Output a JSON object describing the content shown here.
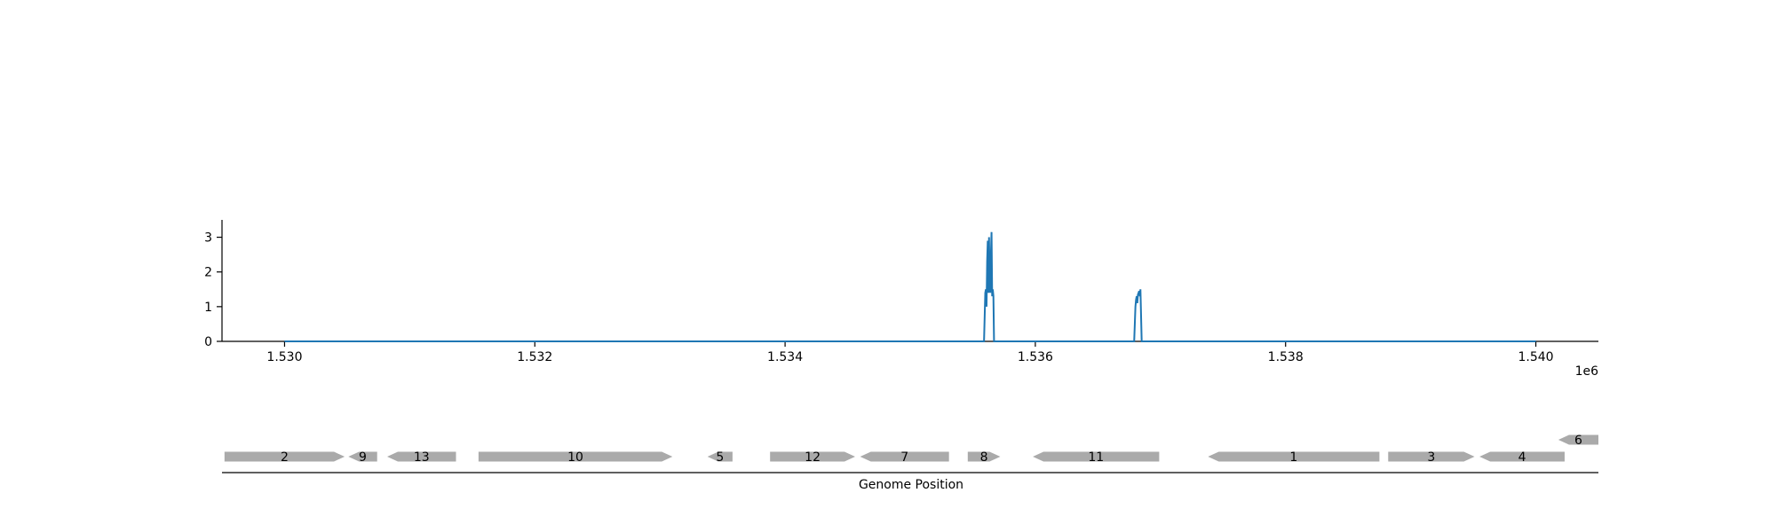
{
  "chart_data": {
    "type": "line",
    "title": "",
    "ylabel": "",
    "xlabel": "Genome Position",
    "x_offset_label": "1e6",
    "xlim": [
      1529500,
      1540500
    ],
    "ylim": [
      0,
      3.5
    ],
    "x_ticks": [
      {
        "value": 1530000,
        "label": "1.530"
      },
      {
        "value": 1532000,
        "label": "1.532"
      },
      {
        "value": 1534000,
        "label": "1.534"
      },
      {
        "value": 1536000,
        "label": "1.536"
      },
      {
        "value": 1538000,
        "label": "1.538"
      },
      {
        "value": 1540000,
        "label": "1.540"
      }
    ],
    "y_ticks": [
      {
        "value": 0,
        "label": "0"
      },
      {
        "value": 1,
        "label": "1"
      },
      {
        "value": 2,
        "label": "2"
      },
      {
        "value": 3,
        "label": "3"
      }
    ],
    "series": [
      {
        "color": "#1f77b4",
        "x": [
          1530000,
          1535590,
          1535600,
          1535605,
          1535610,
          1535615,
          1535620,
          1535625,
          1535630,
          1535635,
          1535640,
          1535645,
          1535650,
          1535655,
          1535660,
          1535665,
          1535670,
          1535680,
          1536790,
          1536800,
          1536805,
          1536810,
          1536815,
          1536820,
          1536825,
          1536830,
          1536835,
          1536840,
          1536850,
          1540000
        ],
        "y": [
          0,
          0,
          1.4,
          1.5,
          1.0,
          2.3,
          2.9,
          1.4,
          3.0,
          1.6,
          1.4,
          2.5,
          3.15,
          1.3,
          1.5,
          1.3,
          0,
          0,
          0,
          1.0,
          1.2,
          1.3,
          1.1,
          1.35,
          1.4,
          1.45,
          1.3,
          1.5,
          0,
          0
        ]
      }
    ],
    "genes": [
      {
        "label": "2",
        "start": 1529520,
        "end": 1530480,
        "strand": "+",
        "row": 0
      },
      {
        "label": "9",
        "start": 1530510,
        "end": 1530740,
        "strand": "-",
        "row": 0
      },
      {
        "label": "13",
        "start": 1530820,
        "end": 1531370,
        "strand": "-",
        "row": 0
      },
      {
        "label": "10",
        "start": 1531550,
        "end": 1533100,
        "strand": "+",
        "row": 0
      },
      {
        "label": "5",
        "start": 1533380,
        "end": 1533580,
        "strand": "-",
        "row": 0
      },
      {
        "label": "12",
        "start": 1533880,
        "end": 1534560,
        "strand": "+",
        "row": 0
      },
      {
        "label": "7",
        "start": 1534600,
        "end": 1535310,
        "strand": "-",
        "row": 0
      },
      {
        "label": "8",
        "start": 1535460,
        "end": 1535720,
        "strand": "+",
        "row": 0
      },
      {
        "label": "11",
        "start": 1535980,
        "end": 1536990,
        "strand": "-",
        "row": 0
      },
      {
        "label": "1",
        "start": 1537380,
        "end": 1538750,
        "strand": "-",
        "row": 0
      },
      {
        "label": "3",
        "start": 1538820,
        "end": 1539510,
        "strand": "+",
        "row": 0
      },
      {
        "label": "4",
        "start": 1539550,
        "end": 1540230,
        "strand": "-",
        "row": 0
      },
      {
        "label": "6",
        "start": 1540180,
        "end": 1540500,
        "strand": "-",
        "row": 1
      }
    ],
    "gene_color": "#aaaaaa",
    "grid": false,
    "legend": "none"
  }
}
